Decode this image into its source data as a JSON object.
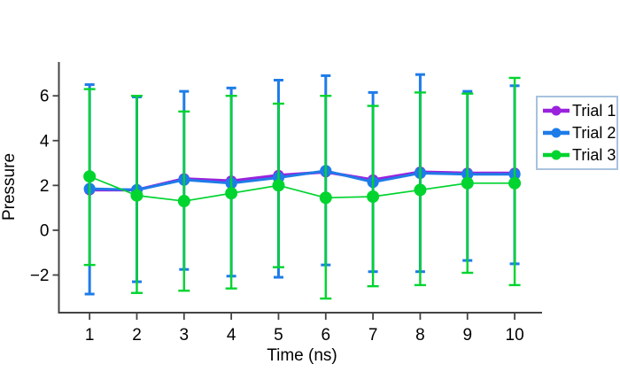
{
  "figure": {
    "background_color": "#ffffff",
    "axis_color": "#444444",
    "text_color": "#000000",
    "legend": {
      "border_color": "#a9c2de",
      "background_color": "#ffffff",
      "entries": [
        "Trial 1",
        "Trial 2",
        "Trial 3"
      ]
    }
  },
  "chart_data": {
    "type": "line",
    "title": "",
    "xlabel": "Time (ns)",
    "ylabel": "Pressure",
    "grid": false,
    "legend_position": "right-outside",
    "error_bars": true,
    "x": [
      1,
      2,
      3,
      4,
      5,
      6,
      7,
      8,
      9,
      10
    ],
    "xticks": [
      1,
      2,
      3,
      4,
      5,
      6,
      7,
      8,
      9,
      10
    ],
    "yticks": [
      6,
      4,
      2,
      0,
      -2
    ],
    "ytick_labels": [
      "6",
      "4",
      "2",
      "0",
      "−2"
    ],
    "xlim": [
      0.35,
      10.58
    ],
    "ylim": [
      -3.68,
      7.51
    ],
    "series": [
      {
        "name": "Trial 1",
        "color": "#9a22dd",
        "values": [
          1.8,
          1.8,
          2.3,
          2.2,
          2.45,
          2.6,
          2.25,
          2.6,
          2.55,
          2.55
        ]
      },
      {
        "name": "Trial 2",
        "color": "#1e7ce8",
        "values": [
          1.85,
          1.8,
          2.25,
          2.1,
          2.35,
          2.65,
          2.15,
          2.55,
          2.5,
          2.5
        ],
        "upper": [
          6.5,
          5.95,
          6.2,
          6.35,
          6.7,
          6.9,
          6.15,
          6.95,
          6.2,
          6.45
        ],
        "lower": [
          -2.85,
          -2.3,
          -1.75,
          -2.05,
          -2.1,
          -1.55,
          -1.85,
          -1.85,
          -1.35,
          -1.5
        ]
      },
      {
        "name": "Trial 3",
        "color": "#00d42f",
        "values": [
          2.4,
          1.55,
          1.3,
          1.65,
          2.0,
          1.45,
          1.5,
          1.8,
          2.1,
          2.1
        ],
        "upper": [
          6.3,
          6.0,
          5.3,
          6.0,
          5.65,
          6.0,
          5.55,
          6.15,
          6.1,
          6.8
        ],
        "lower": [
          -1.55,
          -2.8,
          -2.7,
          -2.6,
          -1.65,
          -3.05,
          -2.5,
          -2.45,
          -1.9,
          -2.45
        ]
      }
    ]
  }
}
